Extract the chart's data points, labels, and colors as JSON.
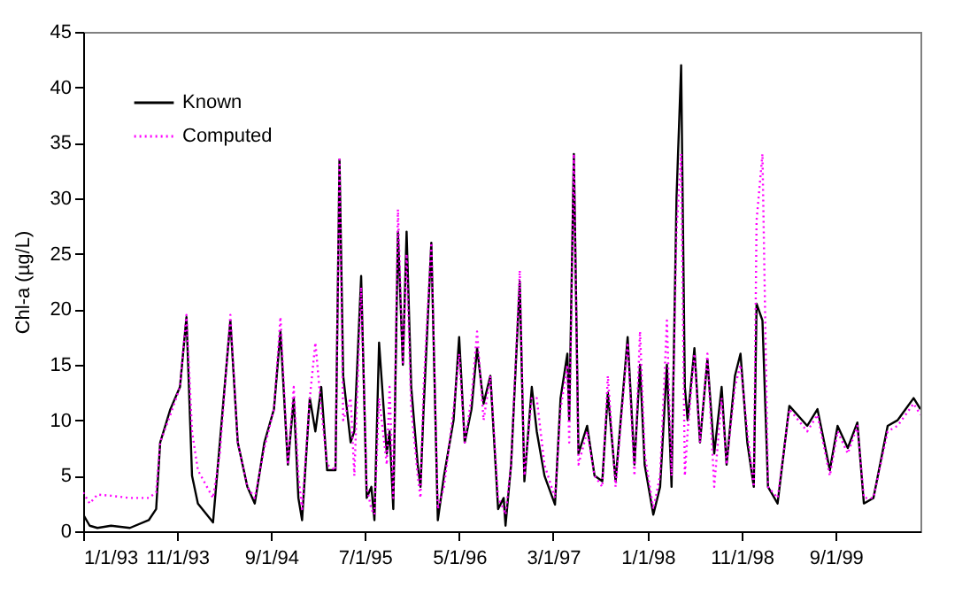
{
  "chart_data": {
    "type": "line",
    "ylabel": "Chl-a (µg/L)",
    "x": [
      "1993-01-01",
      "1993-01-22",
      "1993-02-16",
      "1993-04-01",
      "1993-06-01",
      "1993-08-01",
      "1993-08-25",
      "1993-09-07",
      "1993-10-10",
      "1993-11-10",
      "1993-12-01",
      "1993-12-19",
      "1994-01-07",
      "1994-02-25",
      "1994-03-19",
      "1994-04-22",
      "1994-05-16",
      "1994-06-16",
      "1994-07-10",
      "1994-08-10",
      "1994-09-10",
      "1994-10-01",
      "1994-10-25",
      "1994-11-13",
      "1994-11-28",
      "1994-12-10",
      "1995-01-04",
      "1995-01-22",
      "1995-02-10",
      "1995-03-01",
      "1995-03-28",
      "1995-04-10",
      "1995-04-22",
      "1995-05-16",
      "1995-05-28",
      "1995-06-19",
      "1995-07-07",
      "1995-07-22",
      "1995-08-01",
      "1995-08-16",
      "1995-09-10",
      "1995-09-19",
      "1995-10-01",
      "1995-10-16",
      "1995-11-01",
      "1995-11-13",
      "1995-11-28",
      "1995-12-19",
      "1995-12-28",
      "1996-01-07",
      "1996-02-01",
      "1996-02-22",
      "1996-03-13",
      "1996-04-13",
      "1996-05-01",
      "1996-05-19",
      "1996-06-10",
      "1996-06-28",
      "1996-07-19",
      "1996-08-10",
      "1996-09-04",
      "1996-09-22",
      "1996-09-28",
      "1996-10-16",
      "1996-11-13",
      "1996-11-28",
      "1996-12-22",
      "1997-01-07",
      "1997-02-01",
      "1997-03-07",
      "1997-03-25",
      "1997-04-16",
      "1997-04-22",
      "1997-05-07",
      "1997-05-22",
      "1997-06-19",
      "1997-07-13",
      "1997-08-07",
      "1997-08-25",
      "1997-09-19",
      "1997-10-28",
      "1997-11-19",
      "1997-12-07",
      "1997-12-22",
      "1998-01-19",
      "1998-02-10",
      "1998-03-04",
      "1998-03-19",
      "1998-04-04",
      "1998-04-19",
      "1998-05-01",
      "1998-05-10",
      "1998-06-01",
      "1998-06-19",
      "1998-07-13",
      "1998-08-04",
      "1998-08-28",
      "1998-09-13",
      "1998-10-10",
      "1998-10-28",
      "1998-11-19",
      "1998-12-10",
      "1998-12-19",
      "1999-01-07",
      "1999-01-25",
      "1999-02-25",
      "1999-04-04",
      "1999-06-01",
      "1999-07-04",
      "1999-08-13",
      "1999-09-07",
      "1999-10-10",
      "1999-11-10",
      "1999-12-01",
      "2000-01-01",
      "2000-02-16",
      "2000-03-19",
      "2000-05-10",
      "2000-06-01"
    ],
    "series": [
      {
        "name": "Known",
        "color": "#000000",
        "line_style": "solid",
        "values": [
          1.5,
          0.5,
          0.3,
          0.5,
          0.3,
          1,
          2,
          8,
          11,
          13,
          19.3,
          5,
          2.5,
          0.8,
          8,
          19,
          8,
          4,
          2.5,
          8,
          11,
          18,
          6,
          12,
          3,
          1,
          12,
          9,
          13,
          5.5,
          5.5,
          33.5,
          14,
          8,
          9,
          23,
          3,
          4,
          1,
          17,
          7,
          9,
          2,
          27,
          15,
          27,
          13,
          6,
          4,
          11,
          26,
          1,
          5,
          10,
          17.5,
          8,
          11,
          16.5,
          11.5,
          14,
          2,
          3,
          0.5,
          6,
          22.5,
          4.5,
          13,
          9,
          5,
          2.4,
          12,
          16,
          10,
          34,
          7,
          9.5,
          5,
          4.5,
          12.5,
          4.5,
          17.5,
          6,
          15,
          6,
          1.5,
          4,
          15,
          4,
          30,
          42,
          13,
          10,
          16.5,
          8,
          15.5,
          7,
          13,
          6,
          14,
          16,
          8,
          4,
          20.5,
          19,
          4,
          2.5,
          11.3,
          9.5,
          11,
          5.5,
          9.5,
          7.5,
          9.8,
          2.5,
          3,
          9.5,
          10,
          12,
          11
        ]
      },
      {
        "name": "Computed",
        "color": "#ff00ff",
        "line_style": "dotted",
        "values": [
          3.5,
          2.5,
          3.3,
          3.2,
          3,
          3,
          3.5,
          8,
          10.5,
          13,
          19.5,
          9,
          5.5,
          3,
          7,
          19.5,
          8,
          4,
          3,
          7.5,
          11,
          19.3,
          6,
          13,
          5,
          2,
          12,
          17,
          11,
          6,
          5.5,
          33.5,
          10,
          12,
          5,
          22,
          4,
          2,
          1.5,
          12,
          6,
          13,
          3,
          29,
          15,
          25,
          11,
          5,
          3,
          13,
          26,
          2,
          4,
          11,
          16,
          8,
          12,
          18,
          10,
          14,
          3,
          2,
          1.5,
          6,
          23.5,
          5,
          12,
          12,
          6,
          3,
          11,
          15,
          8,
          34,
          6,
          9,
          5,
          4,
          14,
          4,
          17,
          5,
          18,
          7,
          2,
          5,
          19,
          5,
          27,
          34,
          5,
          9,
          16,
          8,
          16,
          4,
          12,
          6,
          13,
          15,
          9,
          4,
          28,
          34,
          4,
          3,
          11,
          9,
          10.5,
          5,
          9,
          7,
          9.5,
          3,
          3,
          9,
          9.5,
          11.5,
          10.5
        ]
      }
    ],
    "xlim": [
      "1993-01-01",
      "2000-06-01"
    ],
    "xticks": [
      {
        "value": "1993-01-01",
        "label": "1/1/93"
      },
      {
        "value": "1993-11-01",
        "label": "11/1/93"
      },
      {
        "value": "1994-09-01",
        "label": "9/1/94"
      },
      {
        "value": "1995-07-01",
        "label": "7/1/95"
      },
      {
        "value": "1996-05-01",
        "label": "5/1/96"
      },
      {
        "value": "1997-03-01",
        "label": "3/1/97"
      },
      {
        "value": "1998-01-01",
        "label": "1/1/98"
      },
      {
        "value": "1998-11-01",
        "label": "11/1/98"
      },
      {
        "value": "1999-09-01",
        "label": "9/1/99"
      }
    ],
    "ylim": [
      0,
      45
    ],
    "yticks": [
      0,
      5,
      10,
      15,
      20,
      25,
      30,
      35,
      40,
      45
    ],
    "grid": false,
    "legend": "top left"
  }
}
